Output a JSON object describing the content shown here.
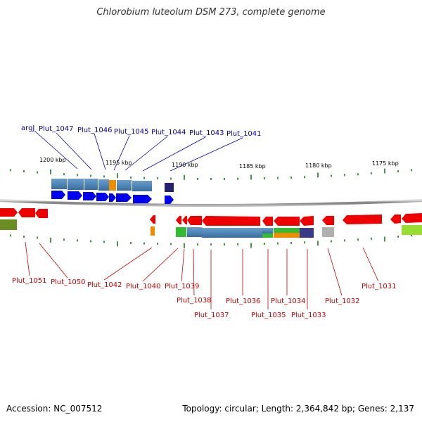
{
  "title": "Chlorobium luteolum DSM 273, complete genome",
  "footer": {
    "accession": "Accession: NC_007512",
    "topology": "Topology: circular; Length: 2,364,842 bp; Genes: 2,137"
  },
  "scale_labels": [
    "1200 kbp",
    "1195 kbp",
    "1190 kbp",
    "1185 kbp",
    "1180 kbp",
    "1175 kbp"
  ],
  "top_genes": [
    "argJ",
    "Plut_1047",
    "Plut_1046",
    "Plut_1045",
    "Plut_1044",
    "Plut_1043",
    "Plut_1041"
  ],
  "bottom_genes": [
    "Plut_1051",
    "Plut_1050",
    "Plut_1042",
    "Plut_1040",
    "Plut_1039",
    "Plut_1038",
    "Plut_1037",
    "Plut_1036",
    "Plut_1035",
    "Plut_1034",
    "Plut_1033",
    "Plut_1032",
    "Plut_1031"
  ],
  "colors": {
    "forward_strand": "#0000ee",
    "reverse_strand": "#ee0000",
    "label_blue": "#0000aa",
    "label_red": "#cc0000",
    "tick": "#1a7a1a",
    "backbone": "#888888",
    "cog_blue": "#4f87b8",
    "cog_navy": "#22226e",
    "cog_orange": "#f08c00",
    "cog_green": "#33bb33",
    "cog_gray": "#b0b0b0",
    "cog_lime": "#99dd33",
    "cog_olive": "#6b8e23"
  }
}
